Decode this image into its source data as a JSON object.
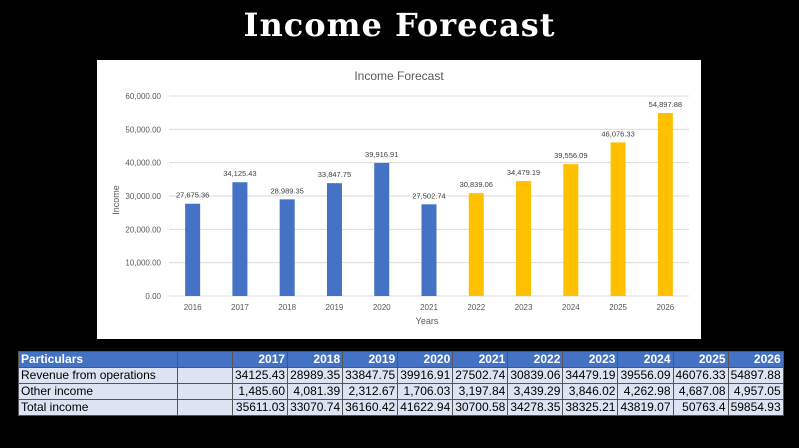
{
  "slide": {
    "title": "Income Forecast"
  },
  "chart_data": {
    "type": "bar",
    "title": "Income Forecast",
    "xlabel": "Years",
    "ylabel": "Income",
    "ylim": [
      0,
      60000
    ],
    "yticks": [
      "0.00",
      "10,000.00",
      "20,000.00",
      "30,000.00",
      "40,000.00",
      "50,000.00",
      "60,000.00"
    ],
    "categories": [
      "2016",
      "2017",
      "2018",
      "2019",
      "2020",
      "2021",
      "2022",
      "2023",
      "2024",
      "2025",
      "2026"
    ],
    "values": [
      27675.36,
      34125.43,
      28989.35,
      33847.75,
      39916.91,
      27502.74,
      30839.06,
      34479.19,
      39556.09,
      46076.33,
      54897.88
    ],
    "labels": [
      "27,675.36",
      "34,125.43",
      "28,989.35",
      "33,847.75",
      "39,916.91",
      "27,502.74",
      "30,839.06",
      "34,479.19",
      "39,556.09",
      "46,076.33",
      "54,897.88"
    ],
    "colors": [
      "#4472C4",
      "#4472C4",
      "#4472C4",
      "#4472C4",
      "#4472C4",
      "#4472C4",
      "#FFC000",
      "#FFC000",
      "#FFC000",
      "#FFC000",
      "#FFC000"
    ],
    "grid": true
  },
  "table": {
    "header": [
      "Particulars",
      "",
      "2017",
      "2018",
      "2019",
      "2020",
      "2021",
      "2022",
      "2023",
      "2024",
      "2025",
      "2026"
    ],
    "rows": [
      [
        "Revenue from operations",
        "",
        "34125.43",
        "28989.35",
        "33847.75",
        "39916.91",
        "27502.74",
        "30839.06",
        "34479.19",
        "39556.09",
        "46076.33",
        "54897.88"
      ],
      [
        "Other income",
        "",
        "1,485.60",
        "4,081.39",
        "2,312.67",
        "1,706.03",
        "3,197.84",
        "3,439.29",
        "3,846.02",
        "4,262.98",
        "4,687.08",
        "4,957.05"
      ],
      [
        "Total income",
        "",
        "35611.03",
        "33070.74",
        "36160.42",
        "41622.94",
        "30700.58",
        "34278.35",
        "38325.21",
        "43819.07",
        "50763.4",
        "59854.93"
      ]
    ]
  }
}
